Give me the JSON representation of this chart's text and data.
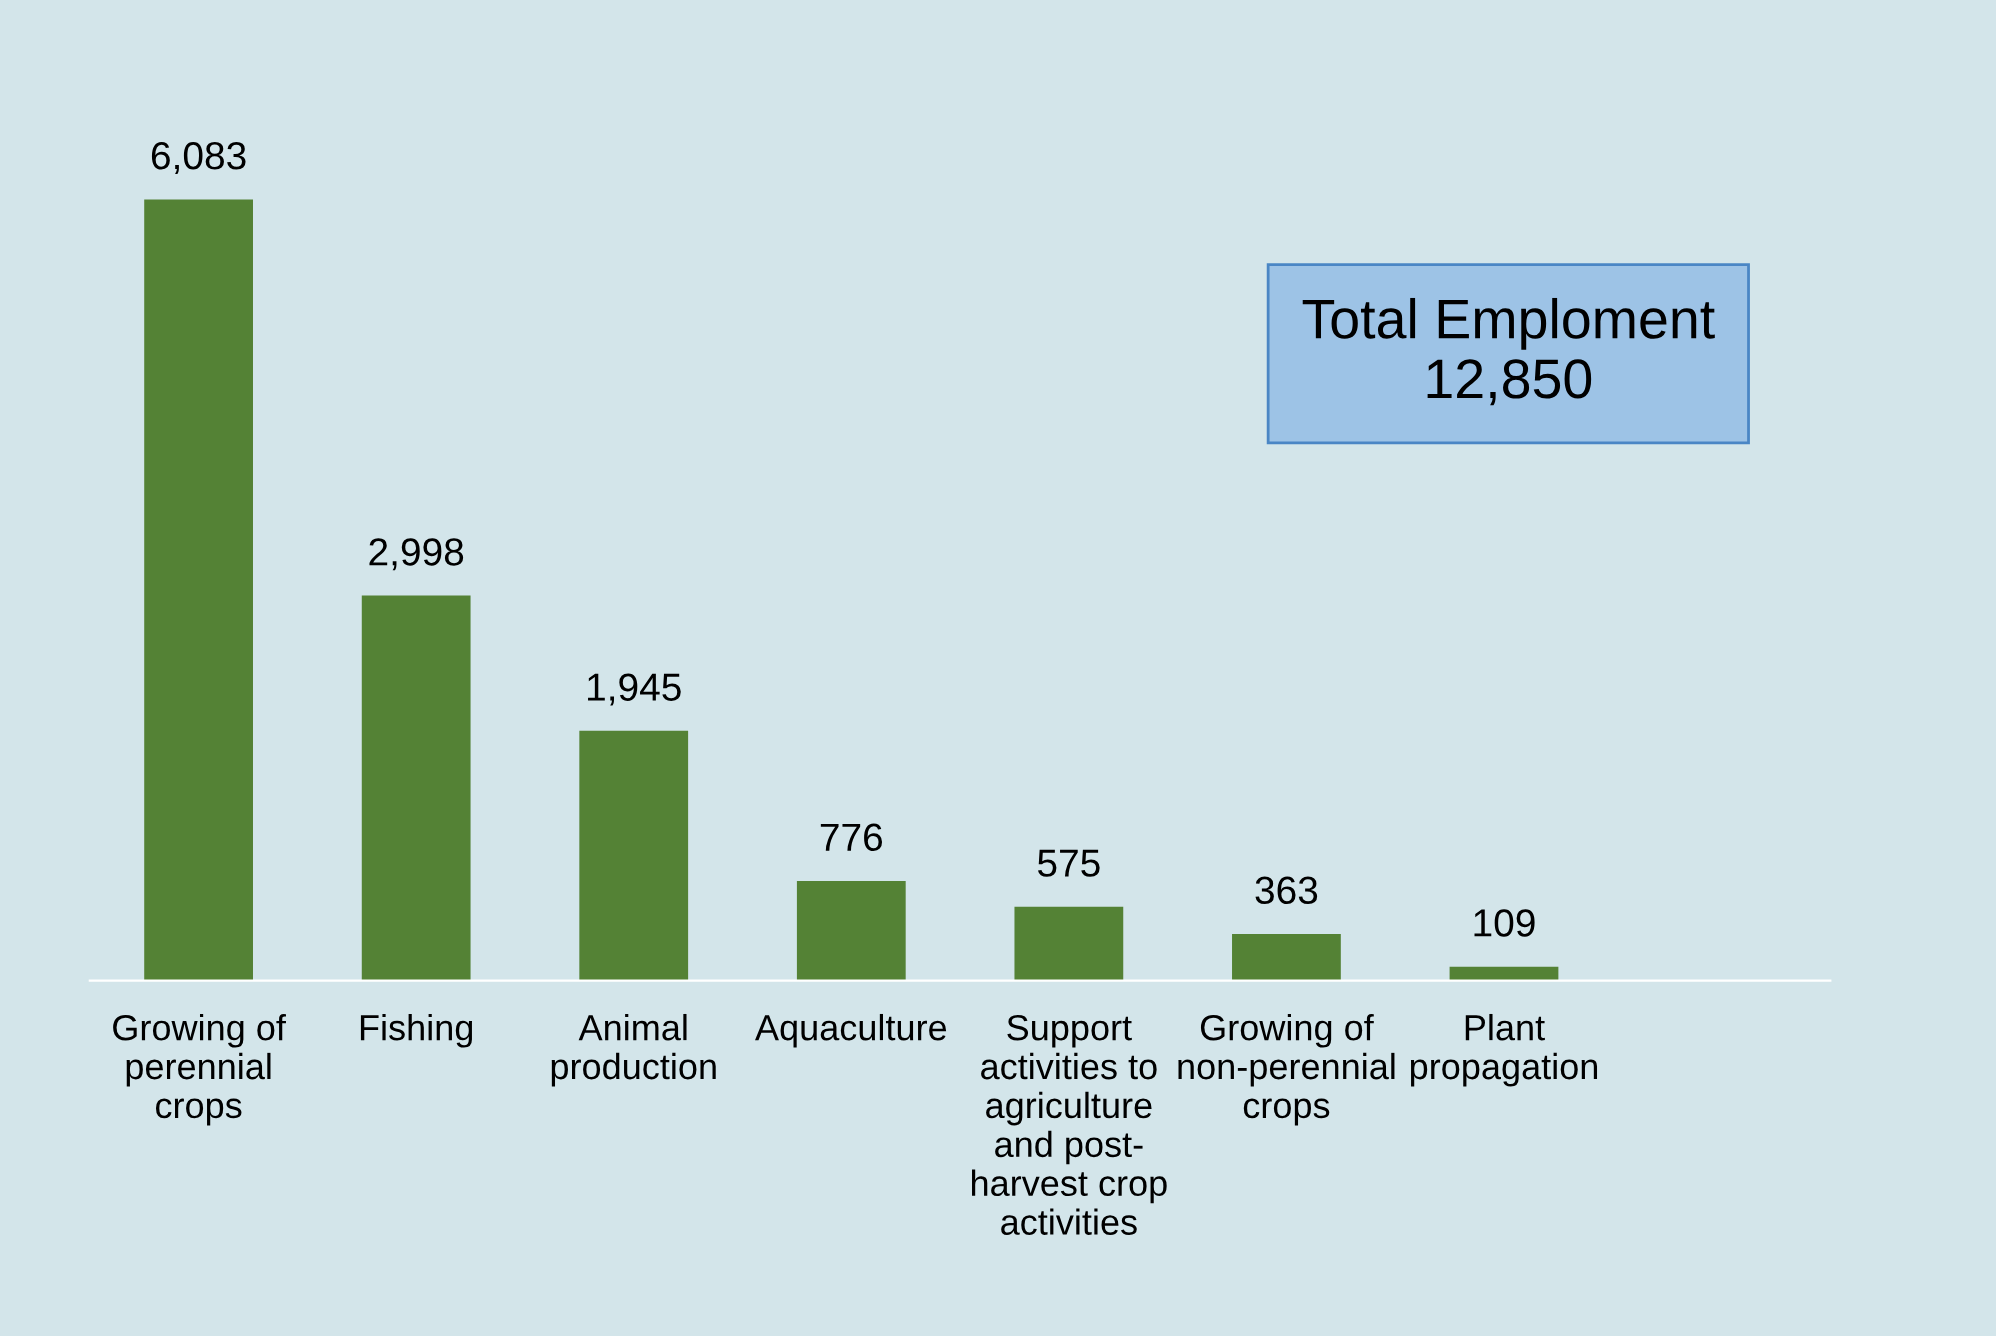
{
  "chart_data": {
    "type": "bar",
    "categories": [
      "Growing of perennial crops",
      "Fishing",
      "Animal production",
      "Aquaculture",
      "Support activities to agriculture and post-harvest crop activities",
      "Growing of non-perennial crops",
      "Plant propagation"
    ],
    "values": [
      6083,
      2998,
      1945,
      776,
      575,
      363,
      109
    ],
    "color": "#548235",
    "value_labels": [
      "6,083",
      "2,998",
      "1,945",
      "776",
      "575",
      "363",
      "109"
    ],
    "tick_labels": "x",
    "annotations": [
      "Total Emploment\n12,850"
    ],
    "grid": false,
    "legend": false
  }
}
